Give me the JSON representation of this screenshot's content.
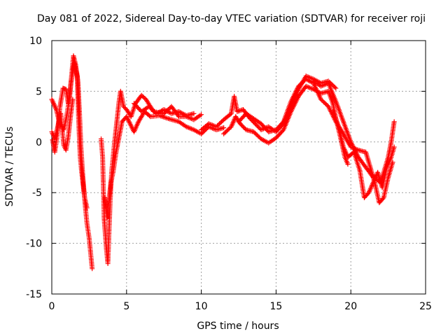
{
  "chart_data": {
    "type": "scatter",
    "title": "Day 081 of 2022, Sidereal Day-to-day VTEC variation (SDTVAR) for receiver roji",
    "xlabel": "GPS time / hours",
    "ylabel": "SDTVAR / TECUs",
    "xlim": [
      0,
      25
    ],
    "ylim": [
      -15,
      10
    ],
    "xticks": [
      0,
      5,
      10,
      15,
      20,
      25
    ],
    "yticks": [
      -15,
      -10,
      -5,
      0,
      5,
      10
    ],
    "grid": true,
    "marker": "+",
    "series": [
      {
        "name": "SDTVAR",
        "color": "#ff0000",
        "tracks": [
          [
            [
              0,
              4.2
            ],
            [
              0.3,
              3.2
            ],
            [
              0.5,
              2.0
            ],
            [
              0.8,
              1.2
            ],
            [
              1.0,
              2.6
            ],
            [
              1.2,
              4.5
            ],
            [
              1.35,
              7.0
            ],
            [
              1.45,
              8.5
            ],
            [
              1.6,
              7.6
            ],
            [
              1.75,
              6.0
            ],
            [
              1.85,
              3.0
            ],
            [
              1.95,
              -0.5
            ],
            [
              2.05,
              -2.8
            ],
            [
              2.15,
              -4.8
            ],
            [
              2.25,
              -6.5
            ],
            [
              2.35,
              -8.0
            ],
            [
              2.5,
              -9.5
            ],
            [
              2.6,
              -11.0
            ],
            [
              2.7,
              -12.5
            ]
          ],
          [
            [
              0.05,
              0.2
            ],
            [
              0.2,
              -1.0
            ],
            [
              0.35,
              0.5
            ],
            [
              0.55,
              3.5
            ],
            [
              0.75,
              5.3
            ],
            [
              0.95,
              5.2
            ],
            [
              1.1,
              3.8
            ],
            [
              1.3,
              6.0
            ],
            [
              1.5,
              7.8
            ],
            [
              1.7,
              6.5
            ],
            [
              1.8,
              2.0
            ],
            [
              1.9,
              -1.5
            ],
            [
              2.0,
              -3.0
            ],
            [
              2.1,
              -4.3
            ],
            [
              2.2,
              -5.5
            ],
            [
              2.35,
              -6.5
            ]
          ],
          [
            [
              0,
              1.0
            ],
            [
              0.2,
              0.3
            ],
            [
              0.4,
              1.5
            ],
            [
              0.6,
              2.8
            ],
            [
              0.8,
              -0.3
            ],
            [
              0.95,
              -0.8
            ],
            [
              1.1,
              0.5
            ],
            [
              1.25,
              2.5
            ],
            [
              1.4,
              4.2
            ]
          ],
          [
            [
              3.3,
              0.3
            ],
            [
              3.4,
              -1.5
            ],
            [
              3.45,
              -4.5
            ],
            [
              3.5,
              -7.5
            ],
            [
              3.6,
              -9.5
            ],
            [
              3.65,
              -10.5
            ],
            [
              3.75,
              -12.0
            ],
            [
              3.85,
              -8.0
            ],
            [
              3.9,
              -6.0
            ],
            [
              4.0,
              -3.0
            ],
            [
              4.1,
              -1.5
            ],
            [
              4.2,
              0.0
            ],
            [
              4.35,
              2.0
            ],
            [
              4.5,
              4.0
            ],
            [
              4.6,
              5.0
            ],
            [
              4.8,
              3.5
            ],
            [
              5.0,
              3.2
            ],
            [
              5.3,
              2.5
            ],
            [
              5.6,
              3.8
            ],
            [
              6.0,
              4.6
            ],
            [
              6.3,
              4.2
            ],
            [
              6.8,
              3.0
            ],
            [
              7.5,
              2.8
            ],
            [
              8.0,
              3.5
            ],
            [
              8.5,
              2.5
            ],
            [
              9.0,
              2.5
            ],
            [
              9.5,
              2.2
            ],
            [
              10.0,
              2.7
            ]
          ],
          [
            [
              3.55,
              -5.5
            ],
            [
              3.7,
              -7.5
            ],
            [
              3.8,
              -6.0
            ],
            [
              3.95,
              -4.0
            ],
            [
              4.1,
              -3.0
            ],
            [
              4.3,
              -1.0
            ],
            [
              4.5,
              0.5
            ],
            [
              4.7,
              2.0
            ],
            [
              5.0,
              2.5
            ],
            [
              5.5,
              1.0
            ],
            [
              5.8,
              2.0
            ],
            [
              6.2,
              3.0
            ],
            [
              6.6,
              2.5
            ],
            [
              7.2,
              2.6
            ],
            [
              7.8,
              2.3
            ],
            [
              8.5,
              2.0
            ],
            [
              9.0,
              1.5
            ],
            [
              9.5,
              1.2
            ],
            [
              10.0,
              0.8
            ],
            [
              10.5,
              1.5
            ],
            [
              11.0,
              1.2
            ],
            [
              11.5,
              1.4
            ]
          ],
          [
            [
              5.5,
              3.8
            ],
            [
              6.0,
              3.0
            ],
            [
              6.5,
              3.5
            ],
            [
              7.0,
              2.8
            ],
            [
              7.5,
              3.2
            ],
            [
              8.0,
              2.8
            ],
            [
              8.5,
              3.0
            ],
            [
              9.0,
              2.6
            ],
            [
              9.5,
              2.8
            ]
          ],
          [
            [
              10.0,
              1.2
            ],
            [
              10.5,
              1.8
            ],
            [
              11.0,
              1.5
            ],
            [
              11.5,
              2.2
            ],
            [
              12.0,
              2.8
            ],
            [
              12.2,
              4.5
            ],
            [
              12.4,
              3.0
            ],
            [
              12.8,
              3.2
            ],
            [
              13.2,
              2.4
            ],
            [
              13.6,
              1.8
            ],
            [
              14.0,
              1.2
            ],
            [
              14.5,
              1.5
            ],
            [
              15.0,
              1.0
            ],
            [
              15.5,
              1.8
            ],
            [
              16.0,
              3.5
            ],
            [
              16.5,
              5.2
            ],
            [
              17.0,
              6.5
            ],
            [
              17.5,
              6.2
            ],
            [
              18.0,
              5.8
            ],
            [
              18.5,
              6.0
            ],
            [
              19.0,
              5.3
            ]
          ],
          [
            [
              11.5,
              0.8
            ],
            [
              12.0,
              1.5
            ],
            [
              12.3,
              2.5
            ],
            [
              12.6,
              1.8
            ],
            [
              13.0,
              1.2
            ],
            [
              13.5,
              1.0
            ],
            [
              14.0,
              0.3
            ],
            [
              14.5,
              -0.1
            ],
            [
              15.0,
              0.4
            ],
            [
              15.5,
              1.2
            ],
            [
              16.0,
              3.0
            ],
            [
              16.5,
              4.5
            ],
            [
              17.0,
              5.5
            ],
            [
              17.5,
              5.2
            ],
            [
              18.0,
              4.8
            ],
            [
              18.5,
              5.0
            ],
            [
              18.8,
              3.8
            ],
            [
              19.0,
              2.3
            ],
            [
              19.3,
              0.5
            ],
            [
              19.6,
              -1.5
            ],
            [
              19.8,
              -2.2
            ]
          ],
          [
            [
              12.5,
              2.0
            ],
            [
              13.0,
              2.8
            ],
            [
              13.5,
              2.3
            ],
            [
              14.0,
              1.8
            ],
            [
              14.5,
              1.0
            ],
            [
              15.0,
              1.2
            ],
            [
              15.5,
              2.0
            ],
            [
              16.0,
              4.0
            ],
            [
              16.5,
              5.5
            ],
            [
              17.0,
              6.2
            ],
            [
              17.5,
              5.8
            ],
            [
              18.0,
              4.2
            ],
            [
              18.5,
              3.5
            ],
            [
              19.0,
              2.0
            ],
            [
              19.5,
              0.8
            ],
            [
              20.0,
              -0.5
            ],
            [
              20.5,
              -0.8
            ],
            [
              21.0,
              -1.0
            ],
            [
              21.3,
              -2.5
            ],
            [
              21.6,
              -4.0
            ],
            [
              21.9,
              -6.0
            ],
            [
              22.2,
              -5.5
            ],
            [
              22.5,
              -3.5
            ],
            [
              22.8,
              -2.0
            ]
          ],
          [
            [
              17.5,
              6.0
            ],
            [
              18.0,
              5.5
            ],
            [
              18.5,
              5.8
            ],
            [
              19.0,
              4.0
            ],
            [
              19.5,
              2.0
            ],
            [
              20.0,
              0.0
            ],
            [
              20.5,
              -1.5
            ],
            [
              21.0,
              -2.5
            ],
            [
              21.5,
              -3.5
            ],
            [
              22.0,
              -4.0
            ],
            [
              22.3,
              -2.5
            ],
            [
              22.5,
              -1.5
            ],
            [
              22.7,
              0.0
            ],
            [
              22.9,
              2.0
            ]
          ],
          [
            [
              18.8,
              3.0
            ],
            [
              19.2,
              1.5
            ],
            [
              19.5,
              -0.5
            ],
            [
              19.8,
              -1.5
            ],
            [
              20.2,
              -1.0
            ],
            [
              20.6,
              -2.8
            ],
            [
              20.9,
              -5.5
            ],
            [
              21.2,
              -5.0
            ],
            [
              21.5,
              -4.0
            ],
            [
              21.8,
              -3.0
            ],
            [
              22.1,
              -4.5
            ],
            [
              22.4,
              -2.5
            ],
            [
              22.7,
              -1.5
            ],
            [
              22.9,
              -0.5
            ]
          ]
        ]
      }
    ]
  }
}
